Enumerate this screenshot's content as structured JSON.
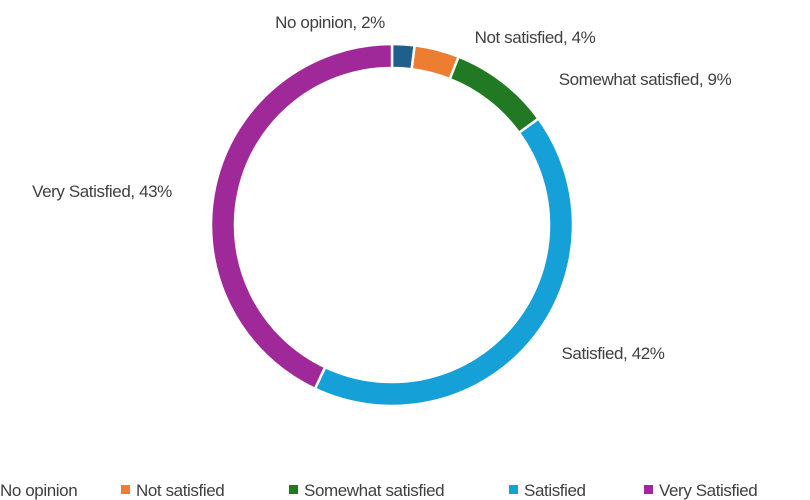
{
  "chart_data": {
    "type": "pie",
    "donut": true,
    "categories": [
      "No opinion",
      "Not satisfied",
      "Somewhat satisfied",
      "Satisfied",
      "Very Satisfied"
    ],
    "values": [
      2,
      4,
      9,
      42,
      43
    ],
    "unit": "%",
    "data_labels": [
      "No opinion, 2%",
      "Not satisfied, 4%",
      "Somewhat satisfied, 9%",
      "Satisfied, 42%",
      "Very Satisfied, 43%"
    ],
    "colors": [
      "#1f5f8b",
      "#ed7d31",
      "#217a23",
      "#16a0d8",
      "#a0299a"
    ],
    "legend": {
      "position": "bottom",
      "entries": [
        "No opinion",
        "Not satisfied",
        "Somewhat satisfied",
        "Satisfied",
        "Very Satisfied"
      ]
    },
    "title": ""
  }
}
